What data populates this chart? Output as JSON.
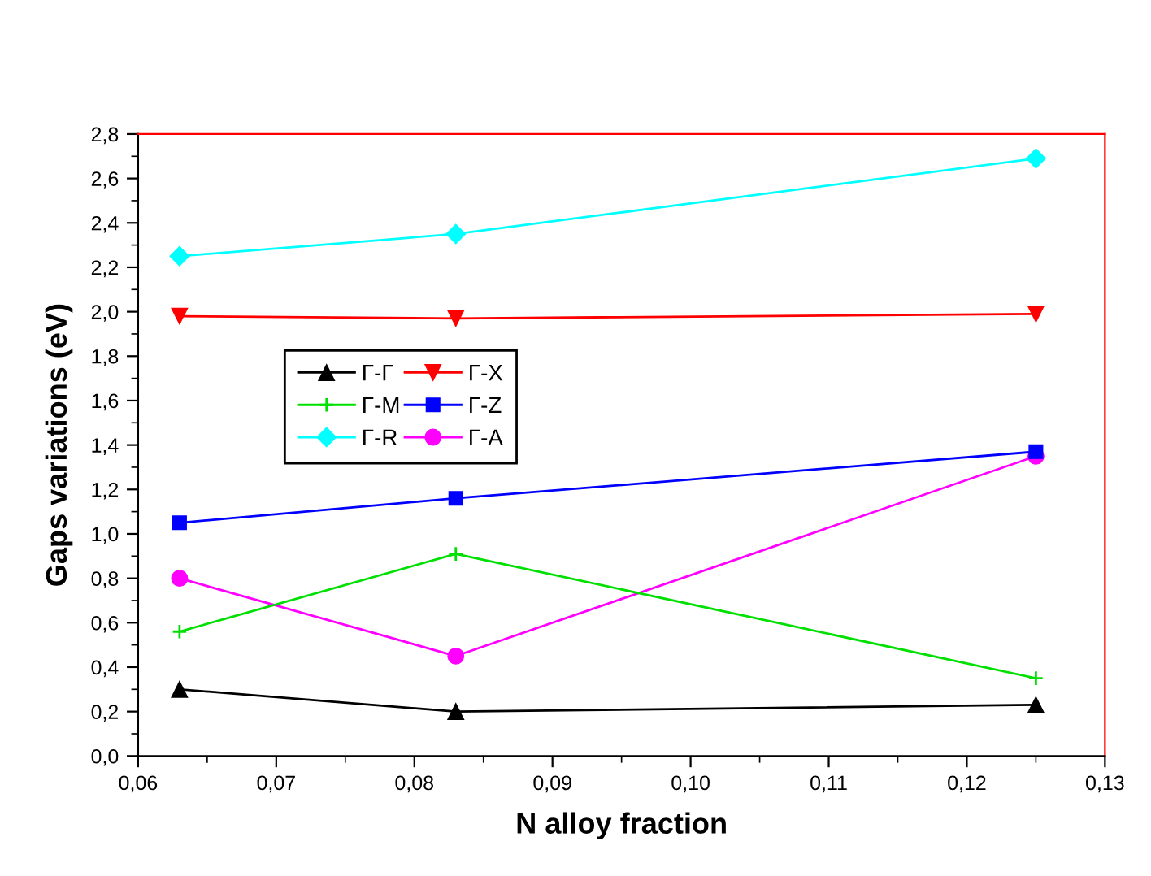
{
  "chart_data": {
    "type": "line",
    "xlabel": "N alloy fraction",
    "ylabel": "Gaps variations (eV)",
    "x": [
      0.063,
      0.083,
      0.125
    ],
    "series": [
      {
        "name": "Γ-Γ",
        "color": "#000000",
        "marker": "triangle",
        "values": [
          0.3,
          0.2,
          0.23
        ]
      },
      {
        "name": "Γ-X",
        "color": "#ff0000",
        "marker": "triangle_down",
        "values": [
          1.98,
          1.97,
          1.99
        ]
      },
      {
        "name": "Γ-M",
        "color": "#00e000",
        "marker": "plus",
        "values": [
          0.56,
          0.91,
          0.35
        ]
      },
      {
        "name": "Γ-Z",
        "color": "#0000ff",
        "marker": "square",
        "values": [
          1.05,
          1.16,
          1.37
        ]
      },
      {
        "name": "Γ-R",
        "color": "#00ffff",
        "marker": "diamond",
        "values": [
          2.25,
          2.35,
          2.69
        ]
      },
      {
        "name": "Γ-A",
        "color": "#ff00ff",
        "marker": "circle",
        "values": [
          0.8,
          0.45,
          1.35
        ]
      }
    ],
    "xlim": [
      0.06,
      0.13
    ],
    "xticks": [
      {
        "value": 0.06,
        "label": "0,06"
      },
      {
        "value": 0.07,
        "label": "0,07"
      },
      {
        "value": 0.08,
        "label": "0,08"
      },
      {
        "value": 0.09,
        "label": "0,09"
      },
      {
        "value": 0.1,
        "label": "0,10"
      },
      {
        "value": 0.11,
        "label": "0,11"
      },
      {
        "value": 0.12,
        "label": "0,12"
      },
      {
        "value": 0.13,
        "label": "0,13"
      }
    ],
    "ylim": [
      0,
      2.8
    ],
    "yticks": [
      {
        "value": 0,
        "label": "0,0"
      },
      {
        "value": 0.2,
        "label": "0,2"
      },
      {
        "value": 0.4,
        "label": "0,4"
      },
      {
        "value": 0.6,
        "label": "0,6"
      },
      {
        "value": 0.8,
        "label": "0,8"
      },
      {
        "value": 1.0,
        "label": "1,0"
      },
      {
        "value": 1.2,
        "label": "1,2"
      },
      {
        "value": 1.4,
        "label": "1,4"
      },
      {
        "value": 1.6,
        "label": "1,6"
      },
      {
        "value": 1.8,
        "label": "1,8"
      },
      {
        "value": 2.0,
        "label": "2,0"
      },
      {
        "value": 2.2,
        "label": "2,2"
      },
      {
        "value": 2.4,
        "label": "2,4"
      },
      {
        "value": 2.6,
        "label": "2,6"
      },
      {
        "value": 2.8,
        "label": "2,8"
      }
    ],
    "grid": false,
    "legend": "center left",
    "line_style": "solid"
  }
}
